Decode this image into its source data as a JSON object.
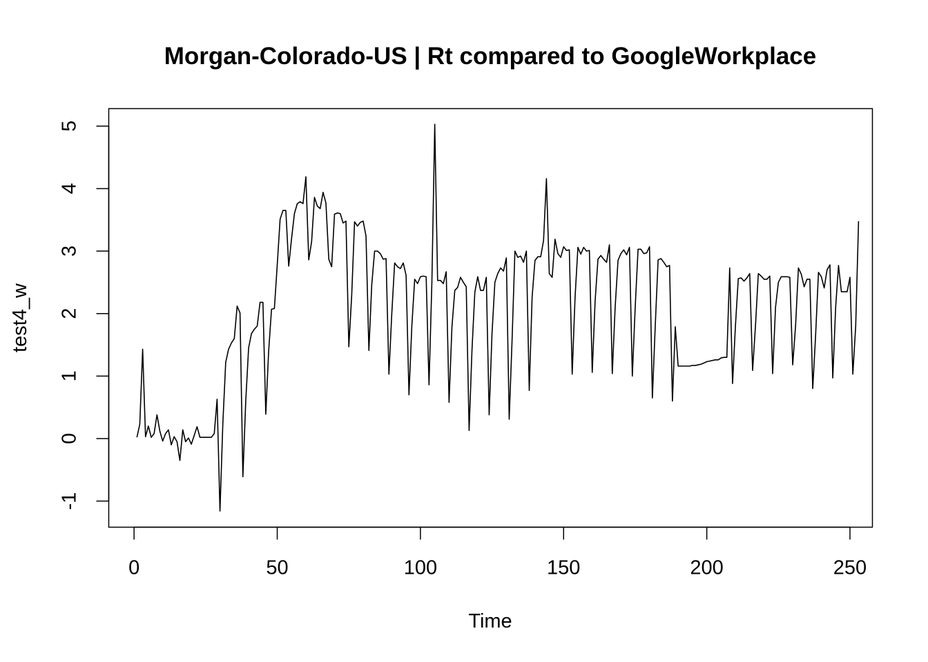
{
  "chart_data": {
    "type": "line",
    "title": "Morgan-Colorado-US | Rt compared to GoogleWorkplace",
    "xlabel": "Time",
    "ylabel": "test4_w",
    "xlim": [
      -8.84,
      257.84
    ],
    "ylim": [
      -1.418,
      5.28
    ],
    "xticks": [
      0,
      50,
      100,
      150,
      200,
      250
    ],
    "yticks": [
      -1,
      0,
      1,
      2,
      3,
      4,
      5
    ],
    "grid": false,
    "legend": "none",
    "line_color": "#000000",
    "series": [
      {
        "values": [
          0.02,
          0.23,
          1.43,
          0.03,
          0.2,
          0.02,
          0.08,
          0.38,
          0.12,
          -0.04,
          0.08,
          0.14,
          -0.1,
          0.03,
          -0.05,
          -0.35,
          0.14,
          -0.05,
          0.01,
          -0.09,
          0.05,
          0.19,
          0.02,
          0.02,
          0.02,
          0.02,
          0.02,
          0.08,
          0.63,
          -1.16,
          0.24,
          1.22,
          1.43,
          1.53,
          1.6,
          2.12,
          2.01,
          -0.61,
          0.6,
          1.45,
          1.68,
          1.75,
          1.8,
          2.18,
          2.18,
          0.39,
          1.4,
          2.07,
          2.08,
          2.78,
          3.51,
          3.65,
          3.65,
          2.76,
          3.2,
          3.6,
          3.76,
          3.79,
          3.76,
          4.19,
          2.86,
          3.15,
          3.86,
          3.72,
          3.68,
          3.94,
          3.77,
          2.87,
          2.75,
          3.59,
          3.61,
          3.6,
          3.45,
          3.48,
          1.47,
          2.29,
          3.47,
          3.4,
          3.46,
          3.48,
          3.24,
          1.41,
          2.46,
          3.0,
          3.0,
          2.96,
          2.87,
          2.88,
          1.03,
          2.0,
          2.81,
          2.75,
          2.72,
          2.81,
          2.61,
          0.7,
          1.8,
          2.55,
          2.48,
          2.59,
          2.6,
          2.59,
          0.86,
          2.5,
          5.03,
          2.53,
          2.53,
          2.48,
          2.67,
          0.58,
          1.78,
          2.37,
          2.42,
          2.58,
          2.5,
          2.43,
          0.13,
          1.41,
          2.34,
          2.59,
          2.37,
          2.37,
          2.58,
          0.38,
          1.68,
          2.5,
          2.64,
          2.73,
          2.68,
          2.89,
          0.31,
          1.57,
          3.0,
          2.9,
          2.92,
          2.82,
          3.0,
          0.77,
          2.26,
          2.85,
          2.91,
          2.91,
          3.17,
          4.16,
          2.64,
          2.58,
          3.19,
          2.96,
          2.9,
          3.07,
          3.01,
          3.02,
          1.03,
          2.26,
          3.06,
          2.95,
          3.06,
          3.0,
          3.01,
          1.06,
          2.2,
          2.87,
          2.93,
          2.87,
          2.82,
          3.1,
          1.04,
          2.1,
          2.85,
          2.96,
          3.02,
          2.94,
          3.06,
          1.0,
          2.1,
          3.03,
          3.03,
          2.96,
          2.97,
          3.07,
          0.65,
          1.8,
          2.86,
          2.88,
          2.82,
          2.75,
          2.77,
          0.6,
          1.79,
          1.16,
          1.16,
          1.16,
          1.16,
          1.16,
          1.17,
          1.17,
          1.18,
          1.19,
          1.21,
          1.23,
          1.24,
          1.25,
          1.26,
          1.26,
          1.29,
          1.3,
          1.3,
          2.73,
          0.88,
          1.8,
          2.56,
          2.57,
          2.52,
          2.57,
          2.64,
          1.09,
          1.8,
          2.64,
          2.6,
          2.55,
          2.55,
          2.6,
          1.04,
          2.1,
          2.5,
          2.59,
          2.59,
          2.59,
          2.58,
          1.18,
          1.8,
          2.73,
          2.63,
          2.43,
          2.55,
          2.55,
          0.8,
          1.65,
          2.66,
          2.59,
          2.41,
          2.7,
          2.78,
          0.97,
          2.1,
          2.77,
          2.35,
          2.35,
          2.35,
          2.58,
          1.03,
          1.8,
          3.48
        ]
      }
    ]
  }
}
